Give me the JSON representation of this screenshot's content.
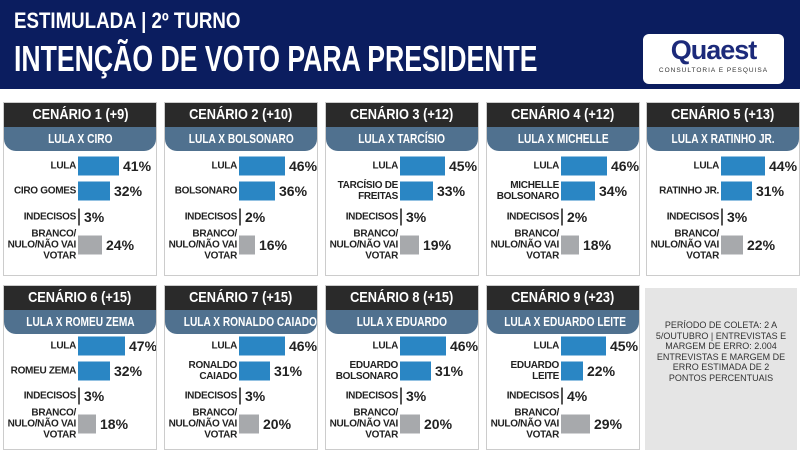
{
  "header": {
    "subtitle": "ESTIMULADA | 2º TURNO",
    "title": "INTENÇÃO DE VOTO PARA PRESIDENTE",
    "logo_text": "Quaest",
    "logo_sub": "CONSULTORIA E PESQUISA"
  },
  "colors": {
    "header_bg": "#0b1d5f",
    "candidate_bar": "#2a86c4",
    "other_bar": "#a7a9ac",
    "matchup_bg": "#50718f"
  },
  "note": "PERÍODO DE COLETA: 2 A 5/OUTUBRO | ENTREVISTAS E MARGEM DE ERRO: 2.004 ENTREVISTAS E MARGEM DE ERRO ESTIMADA DE 2 PONTOS PERCENTUAIS",
  "chart_data": [
    {
      "type": "bar",
      "title": "CENÁRIO 1 (+9)",
      "subtitle": "LULA X CIRO",
      "categories": [
        "LULA",
        "CIRO GOMES",
        "INDECISOS",
        "BRANCO/ NULO/NÃO VAI VOTAR"
      ],
      "values": [
        41,
        32,
        3,
        24
      ]
    },
    {
      "type": "bar",
      "title": "CENÁRIO 2 (+10)",
      "subtitle": "LULA X BOLSONARO",
      "categories": [
        "LULA",
        "BOLSONARO",
        "INDECISOS",
        "BRANCO/ NULO/NÃO VAI VOTAR"
      ],
      "values": [
        46,
        36,
        2,
        16
      ]
    },
    {
      "type": "bar",
      "title": "CENÁRIO 3 (+12)",
      "subtitle": "LULA X TARCÍSIO",
      "categories": [
        "LULA",
        "TARCÍSIO DE FREITAS",
        "INDECISOS",
        "BRANCO/ NULO/NÃO VAI VOTAR"
      ],
      "values": [
        45,
        33,
        3,
        19
      ]
    },
    {
      "type": "bar",
      "title": "CENÁRIO 4 (+12)",
      "subtitle": "LULA X MICHELLE",
      "categories": [
        "LULA",
        "MICHELLE BOLSONARO",
        "INDECISOS",
        "BRANCO/ NULO/NÃO VAI VOTAR"
      ],
      "values": [
        46,
        34,
        2,
        18
      ]
    },
    {
      "type": "bar",
      "title": "CENÁRIO 5 (+13)",
      "subtitle": "LULA X RATINHO JR.",
      "categories": [
        "LULA",
        "RATINHO JR.",
        "INDECISOS",
        "BRANCO/ NULO/NÃO VAI VOTAR"
      ],
      "values": [
        44,
        31,
        3,
        22
      ]
    },
    {
      "type": "bar",
      "title": "CENÁRIO 6 (+15)",
      "subtitle": "LULA X ROMEU ZEMA",
      "categories": [
        "LULA",
        "ROMEU ZEMA",
        "INDECISOS",
        "BRANCO/ NULO/NÃO VAI VOTAR"
      ],
      "values": [
        47,
        32,
        3,
        18
      ]
    },
    {
      "type": "bar",
      "title": "CENÁRIO 7 (+15)",
      "subtitle": "LULA X RONALDO CAIADO",
      "categories": [
        "LULA",
        "RONALDO CAIADO",
        "INDECISOS",
        "BRANCO/ NULO/NÃO VAI VOTAR"
      ],
      "values": [
        46,
        31,
        3,
        20
      ]
    },
    {
      "type": "bar",
      "title": "CENÁRIO 8 (+15)",
      "subtitle": "LULA X EDUARDO",
      "categories": [
        "LULA",
        "EDUARDO BOLSONARO",
        "INDECISOS",
        "BRANCO/ NULO/NÃO VAI VOTAR"
      ],
      "values": [
        46,
        31,
        3,
        20
      ]
    },
    {
      "type": "bar",
      "title": "CENÁRIO 9 (+23)",
      "subtitle": "LULA X EDUARDO LEITE",
      "categories": [
        "LULA",
        "EDUARDO LEITE",
        "INDECISOS",
        "BRANCO/ NULO/NÃO VAI VOTAR"
      ],
      "values": [
        45,
        22,
        4,
        29
      ]
    }
  ]
}
